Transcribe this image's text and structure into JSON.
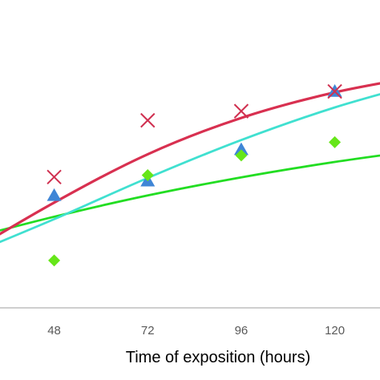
{
  "chart_data": {
    "type": "scatter",
    "title": "",
    "xlabel": "Time of exposition (hours)",
    "ylabel": "",
    "x_ticks": [
      48,
      72,
      96,
      120
    ],
    "xlim": [
      34.1,
      131.6
    ],
    "ylim": [
      0,
      100
    ],
    "grid": false,
    "axis_color": "#bfbfbf",
    "series": [
      {
        "marker": "x",
        "color": "#d03050",
        "points": [
          {
            "x": 48,
            "y": 42.5
          },
          {
            "x": 72,
            "y": 60.9
          },
          {
            "x": 96,
            "y": 63.9
          },
          {
            "x": 120,
            "y": 70.3
          }
        ],
        "trend": [
          {
            "x": 24,
            "y": 16.4
          },
          {
            "x": 48,
            "y": 34.2
          },
          {
            "x": 72,
            "y": 49.9
          },
          {
            "x": 96,
            "y": 61.7
          },
          {
            "x": 120,
            "y": 70.0
          },
          {
            "x": 144,
            "y": 75.7
          }
        ]
      },
      {
        "marker": "triangle",
        "color": "#3f86d6",
        "points": [
          {
            "x": 48,
            "y": 36.5
          },
          {
            "x": 72,
            "y": 41.2
          },
          {
            "x": 96,
            "y": 51.4
          },
          {
            "x": 120,
            "y": 70.3
          }
        ],
        "trend": [
          {
            "x": 24,
            "y": 16.1
          },
          {
            "x": 48,
            "y": 28.8
          },
          {
            "x": 72,
            "y": 42.2
          },
          {
            "x": 96,
            "y": 54.5
          },
          {
            "x": 120,
            "y": 65.1
          },
          {
            "x": 144,
            "y": 73.7
          }
        ]
      },
      {
        "marker": "diamond",
        "color": "#66e619",
        "points": [
          {
            "x": 48,
            "y": 15.4
          },
          {
            "x": 72,
            "y": 43.1
          },
          {
            "x": 96,
            "y": 49.5
          },
          {
            "x": 120,
            "y": 53.8
          }
        ],
        "trend": [
          {
            "x": 24,
            "y": 21.8
          },
          {
            "x": 48,
            "y": 29.6
          },
          {
            "x": 72,
            "y": 36.5
          },
          {
            "x": 96,
            "y": 42.4
          },
          {
            "x": 120,
            "y": 47.4
          },
          {
            "x": 144,
            "y": 51.6
          }
        ]
      }
    ],
    "trend_colors": [
      "#d83050",
      "#40e0d0",
      "#22dd22"
    ]
  }
}
